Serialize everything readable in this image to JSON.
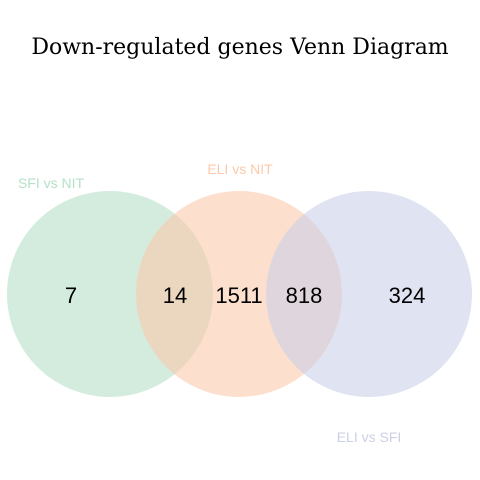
{
  "chart_data": {
    "type": "venn",
    "title": "Down-regulated genes Venn Diagram",
    "sets": [
      {
        "name": "SFI vs NIT",
        "color": "#b5e0c8"
      },
      {
        "name": "ELI vs NIT",
        "color": "#fccaab"
      },
      {
        "name": "ELI vs SFI",
        "color": "#cbd0e7"
      }
    ],
    "regions": [
      {
        "sets": [
          "SFI vs NIT"
        ],
        "value": 7
      },
      {
        "sets": [
          "SFI vs NIT",
          "ELI vs NIT"
        ],
        "value": 14
      },
      {
        "sets": [
          "ELI vs NIT"
        ],
        "value": 1511
      },
      {
        "sets": [
          "ELI vs NIT",
          "ELI vs SFI"
        ],
        "value": 818
      },
      {
        "sets": [
          "ELI vs SFI"
        ],
        "value": 324
      }
    ]
  }
}
